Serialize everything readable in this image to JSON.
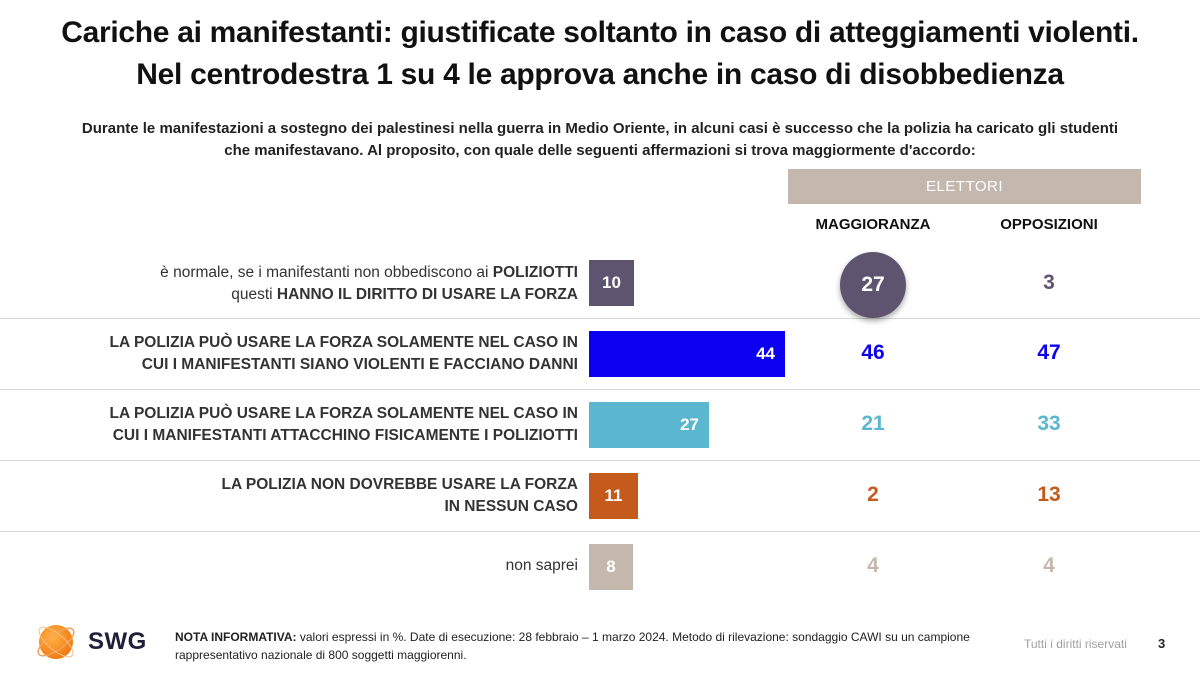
{
  "title_line1": "Cariche ai manifestanti: giustificate soltanto in caso di atteggiamenti violenti.",
  "title_line2": "Nel centrodestra 1 su 4 le approva anche in caso di disobbedienza",
  "subtitle_line1": "Durante le manifestazioni a sostegno dei palestinesi nella guerra in Medio Oriente, in alcuni casi è successo che la polizia ha caricato gli studenti",
  "subtitle_line2": "che manifestavano. Al proposito, con quale delle seguenti affermazioni si trova maggiormente d'accordo:",
  "group_header": "ELETTORI",
  "col_maggioranza": "MAGGIORANZA",
  "col_opposizioni": "OPPOSIZIONI",
  "rows": [
    {
      "label_part1": "è normale, se i manifestanti non obbediscono ai ",
      "label_part1_bold": "POLIZIOTTI",
      "label_part2": "questi ",
      "label_part2_bold": "HANNO IL DIRITTO DI USARE LA FORZA"
    },
    {
      "label_line1": "LA POLIZIA PUÒ USARE LA FORZA SOLAMENTE NEL CASO IN",
      "label_line2": "CUI I MANIFESTANTI SIANO VIOLENTI E FACCIANO DANNI"
    },
    {
      "label_line1": "LA POLIZIA PUÒ USARE LA FORZA SOLAMENTE NEL CASO IN",
      "label_line2": "CUI I MANIFESTANTI ATTACCHINO FISICAMENTE I POLIZIOTTI"
    },
    {
      "label_line1": "LA POLIZIA NON DOVREBBE USARE LA FORZA",
      "label_line2": "IN NESSUN CASO"
    },
    {
      "label_line1": "non saprei"
    }
  ],
  "chart_data": {
    "type": "bar",
    "orientation": "horizontal",
    "unit": "%",
    "xlim": [
      0,
      100
    ],
    "categories": [
      "è normale, se i manifestanti non obbediscono ai POLIZIOTTI questi HANNO IL DIRITTO DI USARE LA FORZA",
      "LA POLIZIA PUÒ USARE LA FORZA SOLAMENTE NEL CASO IN CUI I MANIFESTANTI SIANO VIOLENTI E FACCIANO DANNI",
      "LA POLIZIA PUÒ USARE LA FORZA SOLAMENTE NEL CASO IN CUI I MANIFESTANTI ATTACCHINO FISICAMENTE I POLIZIOTTI",
      "LA POLIZIA NON DOVREBBE USARE LA FORZA IN NESSUN CASO",
      "non saprei"
    ],
    "values": [
      10,
      44,
      27,
      11,
      8
    ],
    "colors": [
      "#5f5470",
      "#0b00f0",
      "#5bb7cf",
      "#c45a1c",
      "#c4b8ae"
    ],
    "series": [
      {
        "name": "MAGGIORANZA",
        "values": [
          27,
          46,
          21,
          2,
          4
        ]
      },
      {
        "name": "OPPOSIZIONI",
        "values": [
          3,
          47,
          33,
          13,
          4
        ]
      }
    ],
    "highlight": {
      "series": "MAGGIORANZA",
      "category_index": 0
    }
  },
  "note_bold": "NOTA INFORMATIVA:",
  "note_text": " valori espressi in %. Date di esecuzione: 28 febbraio – 1 marzo 2024. Metodo di rilevazione: sondaggio CAWI su un campione rappresentativo nazionale di 800 soggetti maggiorenni.",
  "logo_text": "SWG",
  "logo_icon": "swg-globe-logo",
  "rights": "Tutti i diritti riservati",
  "page_number": "3"
}
